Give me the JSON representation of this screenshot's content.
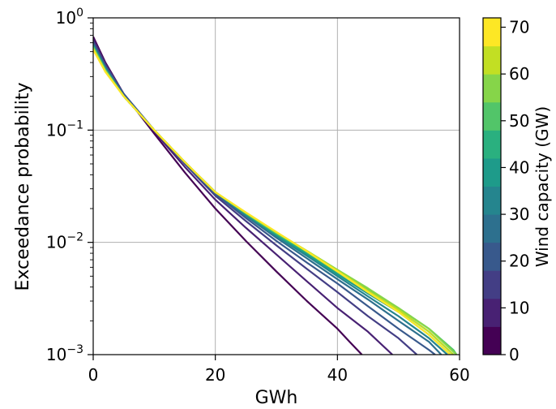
{
  "chart_data": {
    "type": "line",
    "xlabel": "GWh",
    "ylabel": "Exceedance probability",
    "xlim": [
      0,
      60
    ],
    "ylim": [
      0.001,
      1
    ],
    "yscale": "log",
    "grid": true,
    "x_ticks": [
      "0",
      "20",
      "40",
      "60"
    ],
    "y_ticks": [
      {
        "base": "10",
        "exp": "0"
      },
      {
        "base": "10",
        "exp": "−1"
      },
      {
        "base": "10",
        "exp": "−2"
      },
      {
        "base": "10",
        "exp": "−3"
      }
    ],
    "colorbar": {
      "label": "Wind capacity (GW)",
      "range": [
        0,
        72
      ],
      "ticks": [
        "0",
        "10",
        "20",
        "30",
        "40",
        "50",
        "60",
        "70"
      ],
      "bins": [
        {
          "from": 0,
          "to": 6,
          "color": "#440154"
        },
        {
          "from": 6,
          "to": 12,
          "color": "#482173"
        },
        {
          "from": 12,
          "to": 18,
          "color": "#433e85"
        },
        {
          "from": 18,
          "to": 24,
          "color": "#38598c"
        },
        {
          "from": 24,
          "to": 30,
          "color": "#2d708e"
        },
        {
          "from": 30,
          "to": 36,
          "color": "#25858e"
        },
        {
          "from": 36,
          "to": 42,
          "color": "#1e9b8a"
        },
        {
          "from": 42,
          "to": 48,
          "color": "#2ab07f"
        },
        {
          "from": 48,
          "to": 54,
          "color": "#52c569"
        },
        {
          "from": 54,
          "to": 60,
          "color": "#86d549"
        },
        {
          "from": 60,
          "to": 66,
          "color": "#c2df23"
        },
        {
          "from": 66,
          "to": 72,
          "color": "#fde725"
        }
      ]
    },
    "series": [
      {
        "capacity_gw": 0,
        "color": "#440154",
        "points": [
          [
            0,
            0.68
          ],
          [
            2,
            0.4
          ],
          [
            5,
            0.21
          ],
          [
            10,
            0.093
          ],
          [
            15,
            0.042
          ],
          [
            20,
            0.02
          ],
          [
            25,
            0.0103
          ],
          [
            30,
            0.0055
          ],
          [
            35,
            0.003
          ],
          [
            40,
            0.0017
          ],
          [
            42,
            0.0013
          ],
          [
            44,
            0.001
          ]
        ]
      },
      {
        "capacity_gw": 6,
        "color": "#482173",
        "points": [
          [
            0,
            0.65
          ],
          [
            2,
            0.39
          ],
          [
            5,
            0.21
          ],
          [
            10,
            0.097
          ],
          [
            15,
            0.047
          ],
          [
            20,
            0.024
          ],
          [
            25,
            0.0135
          ],
          [
            30,
            0.0078
          ],
          [
            35,
            0.0045
          ],
          [
            40,
            0.0026
          ],
          [
            45,
            0.0016
          ],
          [
            49,
            0.001
          ]
        ]
      },
      {
        "capacity_gw": 12,
        "color": "#433e85",
        "points": [
          [
            0,
            0.62
          ],
          [
            2,
            0.38
          ],
          [
            5,
            0.21
          ],
          [
            10,
            0.1
          ],
          [
            15,
            0.05
          ],
          [
            20,
            0.026
          ],
          [
            25,
            0.0155
          ],
          [
            30,
            0.0094
          ],
          [
            35,
            0.0058
          ],
          [
            40,
            0.0036
          ],
          [
            45,
            0.0022
          ],
          [
            50,
            0.0014
          ],
          [
            53,
            0.001
          ]
        ]
      },
      {
        "capacity_gw": 18,
        "color": "#38598c",
        "points": [
          [
            0,
            0.6
          ],
          [
            2,
            0.37
          ],
          [
            5,
            0.21
          ],
          [
            10,
            0.1
          ],
          [
            15,
            0.051
          ],
          [
            20,
            0.027
          ],
          [
            25,
            0.0165
          ],
          [
            30,
            0.0103
          ],
          [
            35,
            0.0066
          ],
          [
            40,
            0.0043
          ],
          [
            45,
            0.0027
          ],
          [
            50,
            0.0017
          ],
          [
            55,
            0.0011
          ],
          [
            56,
            0.001
          ]
        ]
      },
      {
        "capacity_gw": 24,
        "color": "#2d708e",
        "points": [
          [
            0,
            0.58
          ],
          [
            2,
            0.36
          ],
          [
            5,
            0.2
          ],
          [
            10,
            0.1
          ],
          [
            15,
            0.052
          ],
          [
            20,
            0.028
          ],
          [
            25,
            0.0172
          ],
          [
            30,
            0.011
          ],
          [
            35,
            0.0072
          ],
          [
            40,
            0.0047
          ],
          [
            45,
            0.0031
          ],
          [
            50,
            0.002
          ],
          [
            55,
            0.0013
          ],
          [
            57,
            0.001
          ]
        ]
      },
      {
        "capacity_gw": 30,
        "color": "#25858e",
        "points": [
          [
            0,
            0.57
          ],
          [
            2,
            0.35
          ],
          [
            5,
            0.2
          ],
          [
            10,
            0.1
          ],
          [
            15,
            0.052
          ],
          [
            20,
            0.028
          ],
          [
            25,
            0.0176
          ],
          [
            30,
            0.0114
          ],
          [
            35,
            0.0076
          ],
          [
            40,
            0.005
          ],
          [
            45,
            0.0033
          ],
          [
            50,
            0.0022
          ],
          [
            55,
            0.0014
          ],
          [
            58,
            0.001
          ]
        ]
      },
      {
        "capacity_gw": 36,
        "color": "#1e9b8a",
        "points": [
          [
            0,
            0.56
          ],
          [
            2,
            0.35
          ],
          [
            5,
            0.2
          ],
          [
            10,
            0.1
          ],
          [
            15,
            0.052
          ],
          [
            20,
            0.028
          ],
          [
            25,
            0.0179
          ],
          [
            30,
            0.0117
          ],
          [
            35,
            0.0079
          ],
          [
            40,
            0.0052
          ],
          [
            45,
            0.0035
          ],
          [
            50,
            0.0024
          ],
          [
            55,
            0.0015
          ],
          [
            58.5,
            0.001
          ]
        ]
      },
      {
        "capacity_gw": 42,
        "color": "#2ab07f",
        "points": [
          [
            0,
            0.55
          ],
          [
            2,
            0.34
          ],
          [
            5,
            0.2
          ],
          [
            10,
            0.1
          ],
          [
            15,
            0.052
          ],
          [
            20,
            0.028
          ],
          [
            25,
            0.0181
          ],
          [
            30,
            0.0119
          ],
          [
            35,
            0.0081
          ],
          [
            40,
            0.0054
          ],
          [
            45,
            0.0037
          ],
          [
            50,
            0.0025
          ],
          [
            55,
            0.0016
          ],
          [
            59,
            0.001
          ]
        ]
      },
      {
        "capacity_gw": 48,
        "color": "#52c569",
        "points": [
          [
            0,
            0.55
          ],
          [
            2,
            0.34
          ],
          [
            5,
            0.2
          ],
          [
            10,
            0.1
          ],
          [
            15,
            0.052
          ],
          [
            20,
            0.028
          ],
          [
            25,
            0.0182
          ],
          [
            30,
            0.0121
          ],
          [
            35,
            0.0083
          ],
          [
            40,
            0.0056
          ],
          [
            45,
            0.0038
          ],
          [
            50,
            0.0026
          ],
          [
            55,
            0.0017
          ],
          [
            59,
            0.0011
          ],
          [
            59.5,
            0.001
          ]
        ]
      },
      {
        "capacity_gw": 54,
        "color": "#86d549",
        "points": [
          [
            0,
            0.54
          ],
          [
            2,
            0.34
          ],
          [
            5,
            0.2
          ],
          [
            10,
            0.1
          ],
          [
            15,
            0.052
          ],
          [
            20,
            0.028
          ],
          [
            25,
            0.0183
          ],
          [
            30,
            0.0122
          ],
          [
            35,
            0.0084
          ],
          [
            40,
            0.0057
          ],
          [
            45,
            0.0039
          ],
          [
            50,
            0.0026
          ],
          [
            55,
            0.0017
          ],
          [
            59.5,
            0.001
          ]
        ]
      },
      {
        "capacity_gw": 60,
        "color": "#c2df23",
        "points": [
          [
            0,
            0.53
          ],
          [
            2,
            0.33
          ],
          [
            5,
            0.2
          ],
          [
            10,
            0.1
          ],
          [
            15,
            0.052
          ],
          [
            20,
            0.028
          ],
          [
            25,
            0.0184
          ],
          [
            30,
            0.0123
          ],
          [
            35,
            0.0084
          ],
          [
            40,
            0.0056
          ],
          [
            45,
            0.0037
          ],
          [
            50,
            0.0025
          ],
          [
            55,
            0.0016
          ],
          [
            59,
            0.001
          ]
        ]
      },
      {
        "capacity_gw": 66,
        "color": "#fde725",
        "points": [
          [
            0,
            0.52
          ],
          [
            2,
            0.33
          ],
          [
            5,
            0.2
          ],
          [
            10,
            0.1
          ],
          [
            15,
            0.052
          ],
          [
            20,
            0.028
          ],
          [
            25,
            0.0185
          ],
          [
            30,
            0.0124
          ],
          [
            35,
            0.0083
          ],
          [
            40,
            0.0055
          ],
          [
            45,
            0.0036
          ],
          [
            50,
            0.0024
          ],
          [
            55,
            0.0015
          ],
          [
            58.5,
            0.001
          ]
        ]
      }
    ]
  }
}
